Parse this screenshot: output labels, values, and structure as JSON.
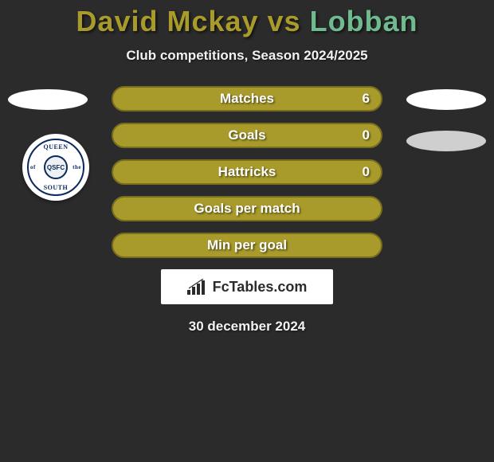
{
  "title": {
    "player1": "David Mckay",
    "vs": " vs ",
    "player2": "Lobban",
    "color1": "#a89b2b",
    "color2": "#6fbb8f"
  },
  "subtitle": "Club competitions, Season 2024/2025",
  "badge": {
    "top": "QUEEN",
    "bottom": "SOUTH",
    "left": "of",
    "right": "the",
    "core": "QSFC"
  },
  "bars": [
    {
      "label": "Matches",
      "value": "6",
      "bg": "#a89b2b",
      "border": "#786d1d"
    },
    {
      "label": "Goals",
      "value": "0",
      "bg": "#a89b2b",
      "border": "#786d1d"
    },
    {
      "label": "Hattricks",
      "value": "0",
      "bg": "#a89b2b",
      "border": "#786d1d"
    },
    {
      "label": "Goals per match",
      "value": "",
      "bg": "#a89b2b",
      "border": "#786d1d"
    },
    {
      "label": "Min per goal",
      "value": "",
      "bg": "#a89b2b",
      "border": "#786d1d"
    }
  ],
  "footer_brand": "FcTables.com",
  "date": "30 december 2024",
  "colors": {
    "page_bg": "#2b2b2b"
  }
}
